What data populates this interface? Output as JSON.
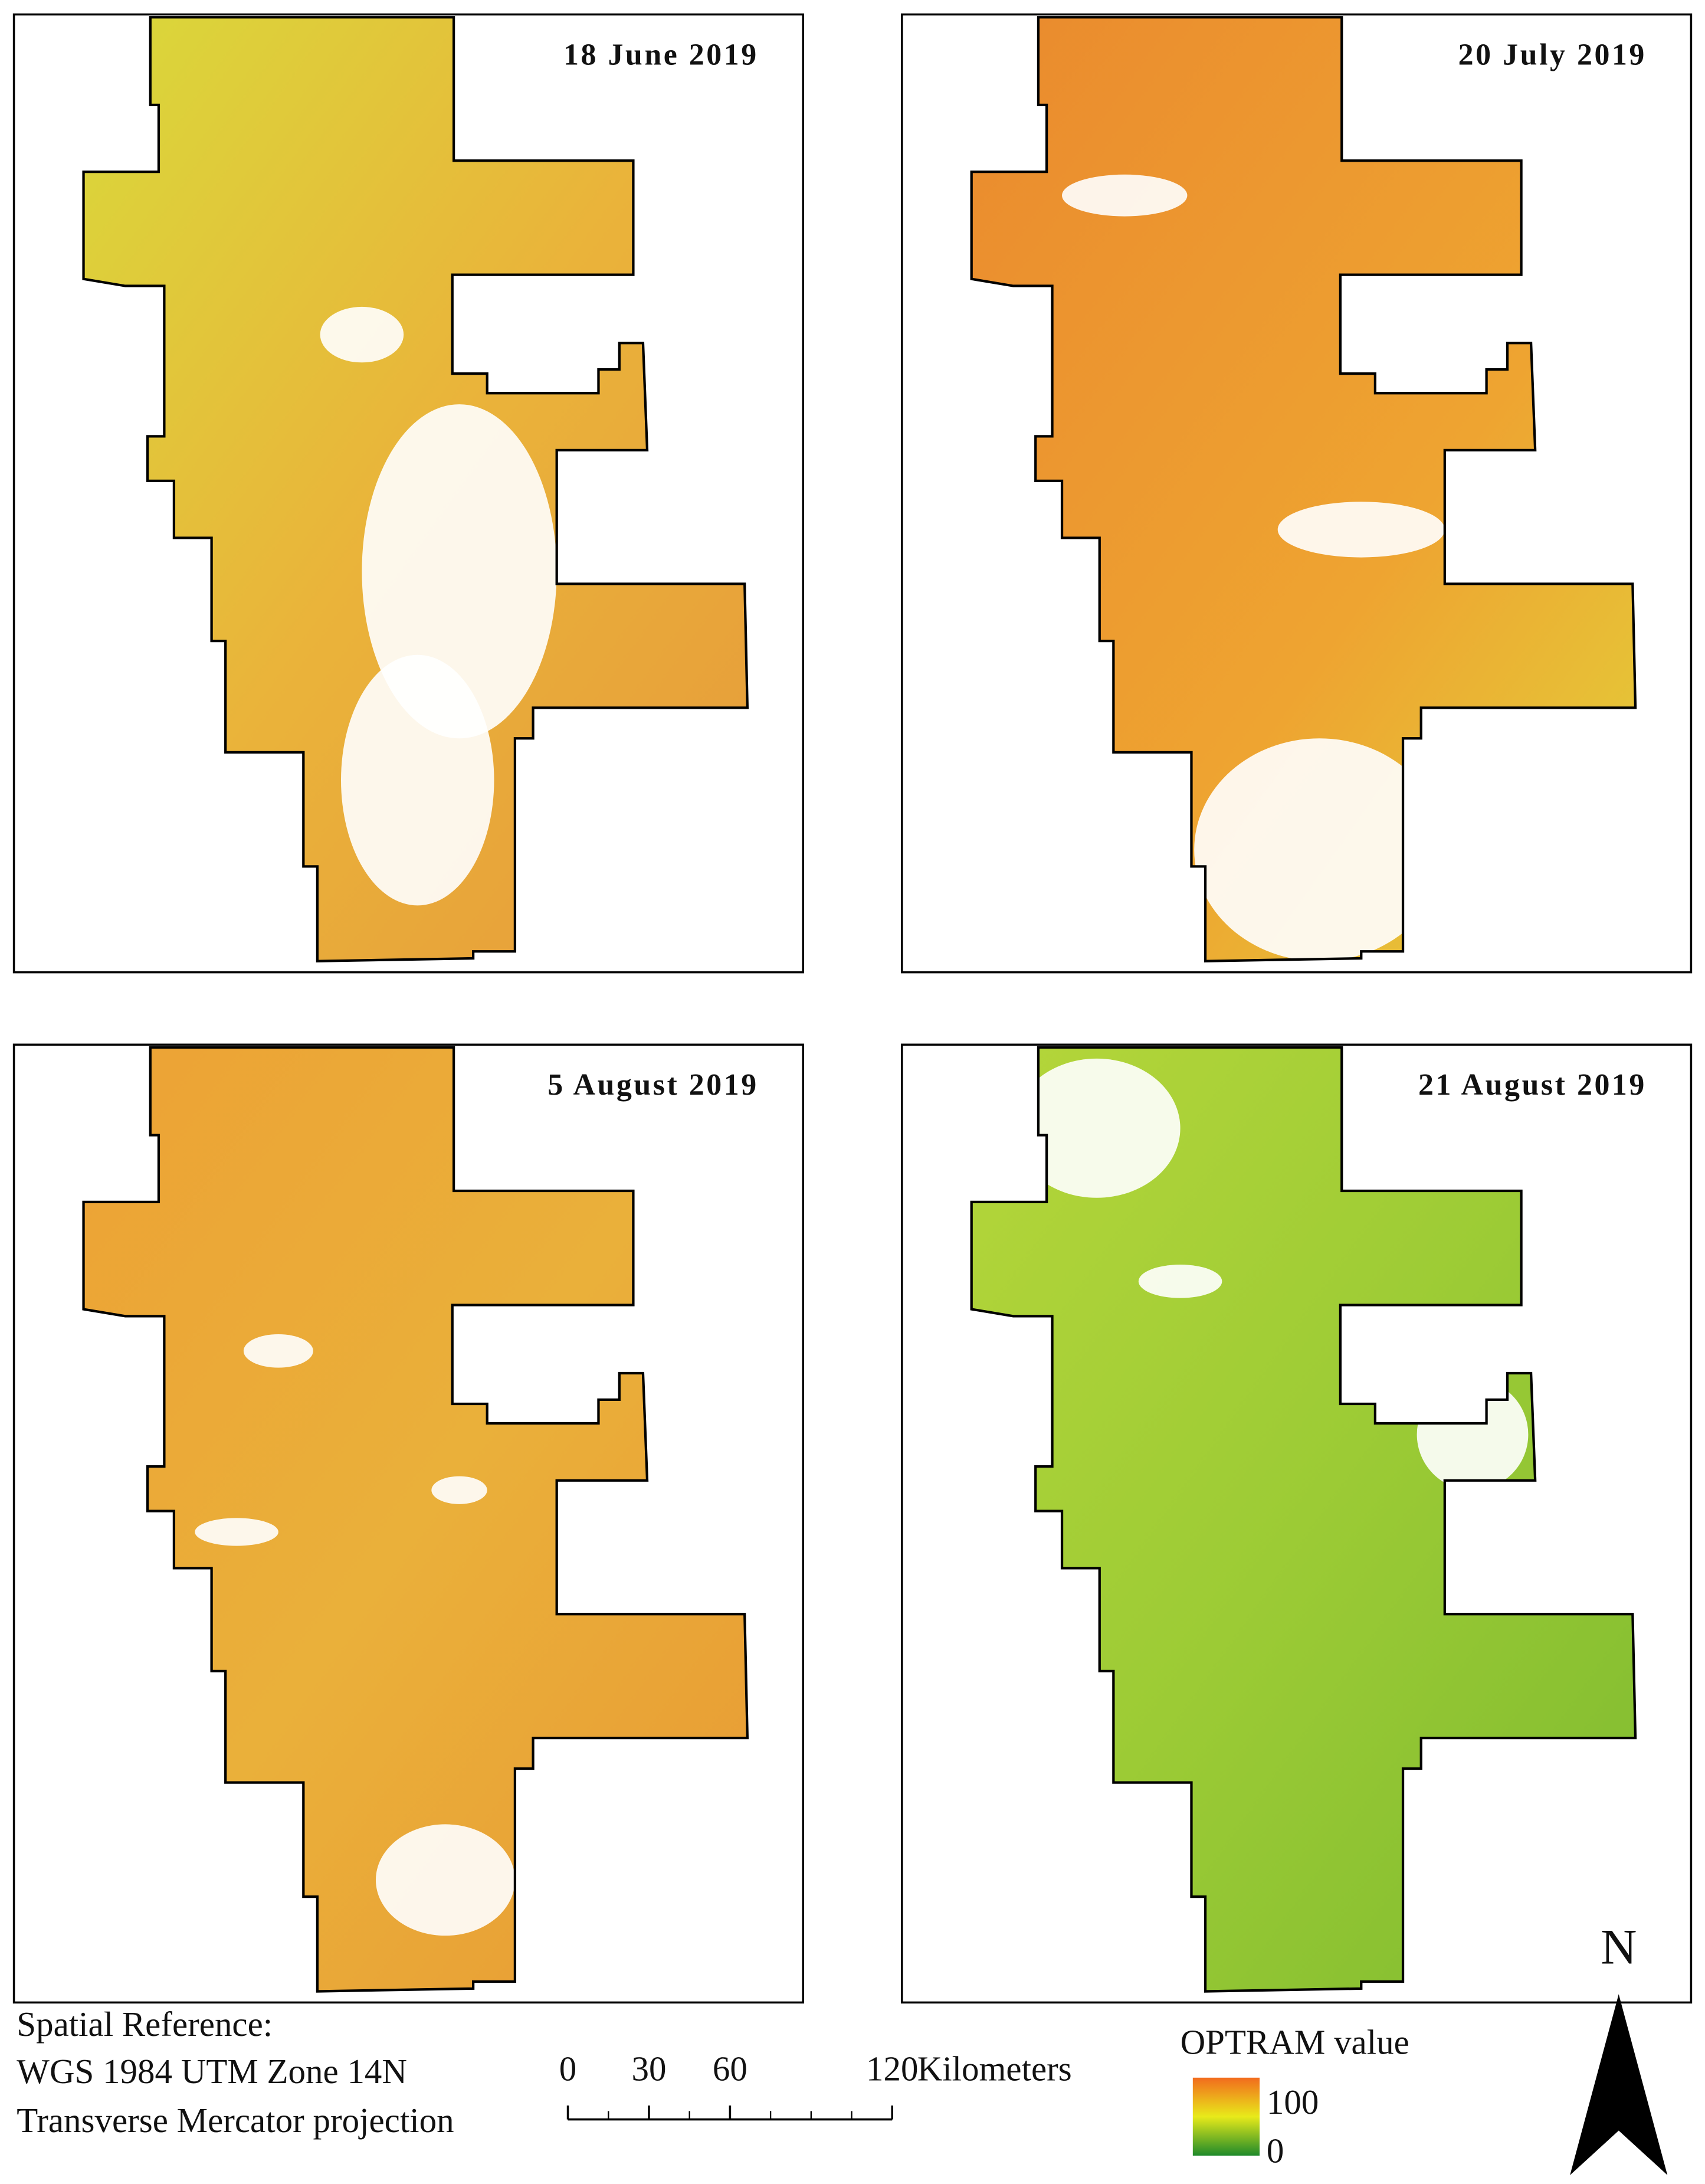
{
  "panels": [
    {
      "title": "18 June 2019"
    },
    {
      "title": "20 July 2019"
    },
    {
      "title": "5 August 2019"
    },
    {
      "title": "21 August 2019"
    }
  ],
  "spatial_reference": [
    "Spatial Reference:",
    "WGS 1984 UTM Zone 14N",
    "Transverse Mercator projection"
  ],
  "scale_bar": {
    "ticks": [
      0,
      30,
      60,
      120
    ],
    "unit": "Kilometers"
  },
  "legend": {
    "title": "OPTRAM value",
    "max": 100,
    "min": 0
  },
  "north": "N"
}
